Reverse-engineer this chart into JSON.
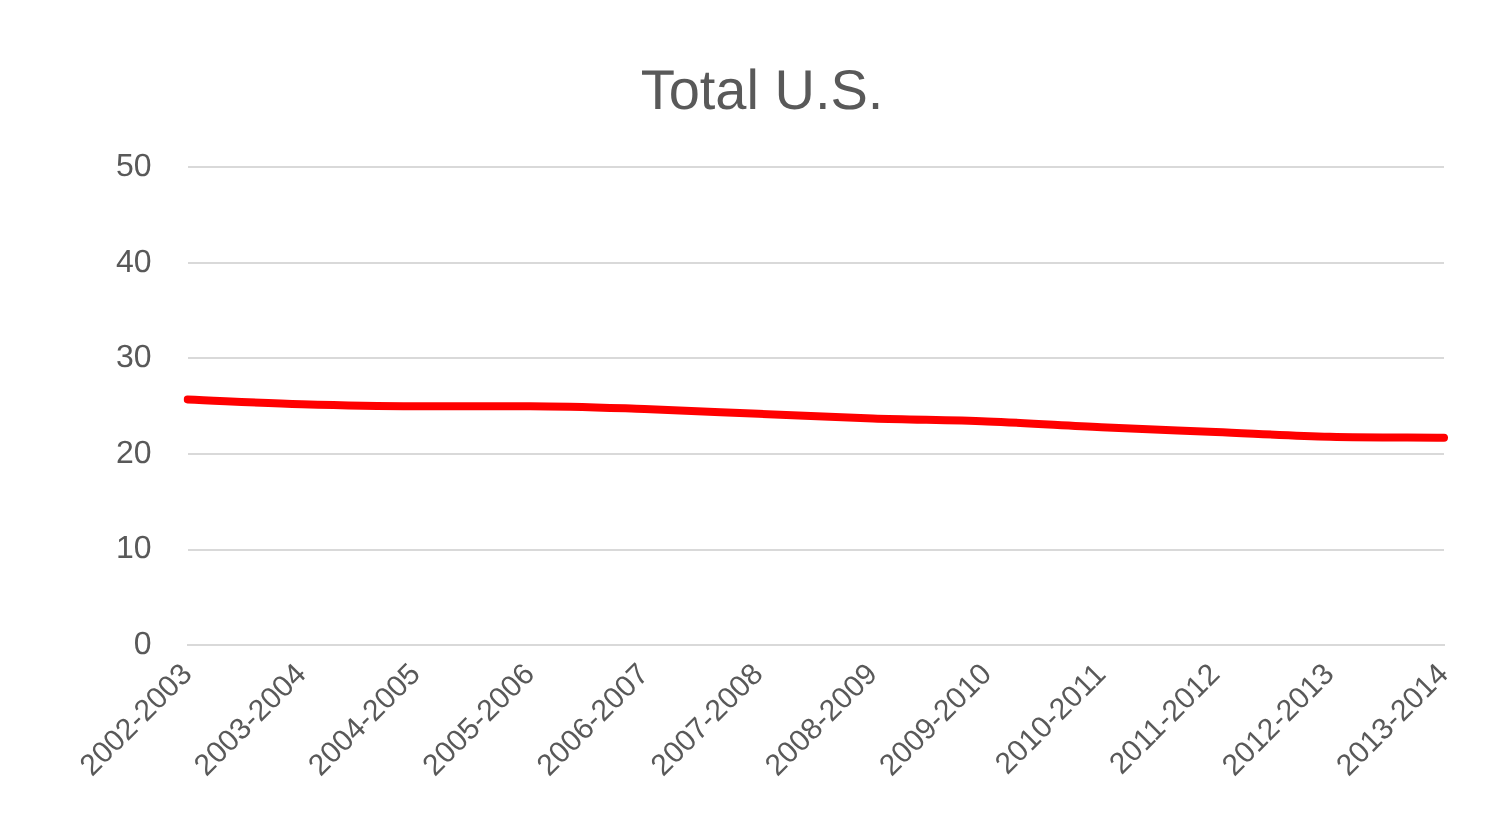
{
  "chart_data": {
    "type": "line",
    "title": "Total U.S.",
    "categories": [
      "2002-2003",
      "2003-2004",
      "2004-2005",
      "2005-2006",
      "2006-2007",
      "2007-2008",
      "2008-2009",
      "2009-2010",
      "2010-2011",
      "2011-2012",
      "2012-2013",
      "2013-2014"
    ],
    "series": [
      {
        "color": "#ff0000",
        "values": [
          25.7,
          25.2,
          25.0,
          25.0,
          24.7,
          24.2,
          23.7,
          23.4,
          22.8,
          22.3,
          21.8,
          21.7
        ]
      }
    ],
    "ylim": [
      0,
      50
    ],
    "yticks": [
      0,
      10,
      20,
      30,
      40,
      50
    ],
    "grid": "y",
    "legend": false,
    "marker": "none"
  }
}
